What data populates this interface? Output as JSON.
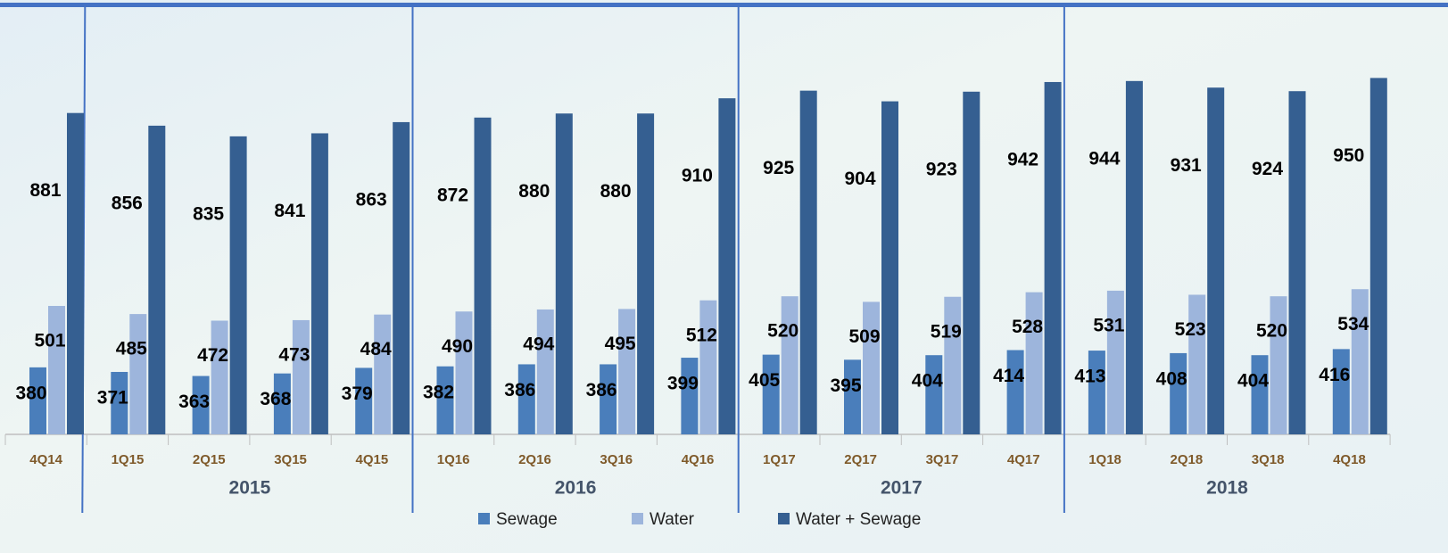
{
  "chart_data": {
    "type": "bar",
    "categories": [
      "4Q14",
      "1Q15",
      "2Q15",
      "3Q15",
      "4Q15",
      "1Q16",
      "2Q16",
      "3Q16",
      "4Q16",
      "1Q17",
      "2Q17",
      "3Q17",
      "4Q17",
      "1Q18",
      "2Q18",
      "3Q18",
      "4Q18"
    ],
    "year_labels": [
      "2015",
      "2016",
      "2017",
      "2018"
    ],
    "series": [
      {
        "name": "Sewage",
        "color": "#4a7ebb",
        "values": [
          380,
          371,
          363,
          368,
          379,
          382,
          386,
          386,
          399,
          405,
          395,
          404,
          414,
          413,
          408,
          404,
          416
        ]
      },
      {
        "name": "Water",
        "color": "#9db5dc",
        "values": [
          501,
          485,
          472,
          473,
          484,
          490,
          494,
          495,
          512,
          520,
          509,
          519,
          528,
          531,
          523,
          520,
          534
        ]
      },
      {
        "name": "Water + Sewage",
        "color": "#355f91",
        "values": [
          881,
          856,
          835,
          841,
          863,
          872,
          880,
          880,
          910,
          925,
          904,
          923,
          942,
          944,
          931,
          924,
          950
        ]
      }
    ],
    "ylim": [
      248,
      1086
    ]
  }
}
